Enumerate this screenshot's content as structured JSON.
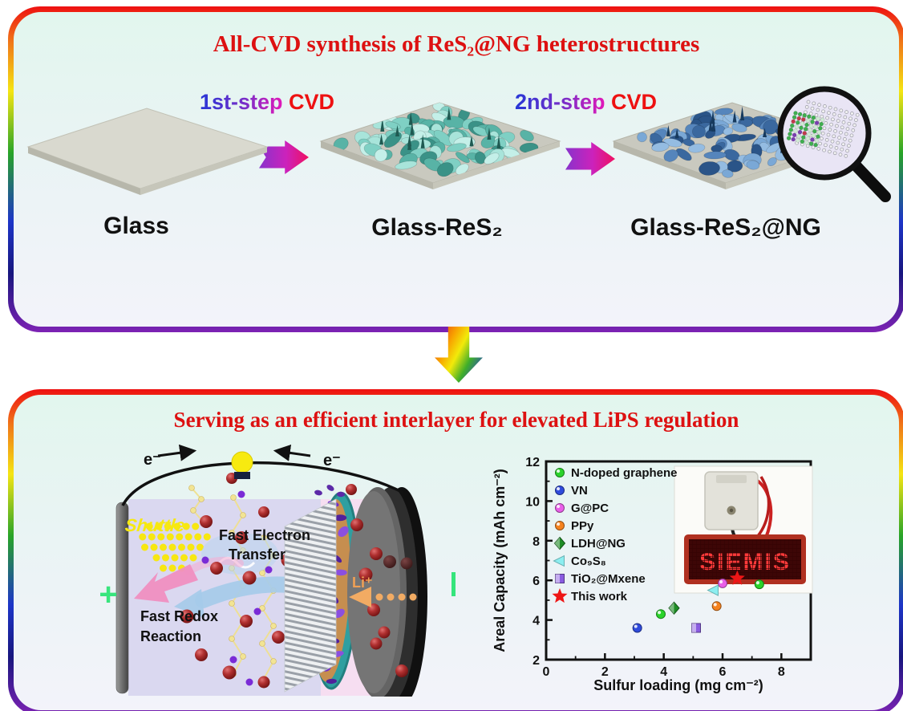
{
  "top": {
    "title": "All-CVD synthesis of ReS₂@NG heterostructures",
    "steps": [
      {
        "gradient": "1st-step",
        "red": "CVD"
      },
      {
        "gradient": "2nd-step",
        "red": "CVD"
      }
    ],
    "labels": [
      "Glass",
      "Glass-ReS₂",
      "Glass-ReS₂@NG"
    ]
  },
  "bottom": {
    "title": "Serving as an efficient interlayer for elevated LiPS regulation",
    "battery": {
      "electron_left": "e⁻",
      "electron_right": "e⁻",
      "plus": "+",
      "shuttle": "Shuttle",
      "fast_electron_line1": "Fast Electron",
      "fast_electron_line2": "Transfer",
      "fast_redox_line1": "Fast Redox",
      "fast_redox_line2": "Reaction",
      "lithium_ion": "Li⁺"
    }
  },
  "chart_data": {
    "type": "scatter",
    "title": "",
    "xlabel": "Sulfur loading (mg cm⁻²)",
    "ylabel": "Areal Capacity (mAh cm⁻²)",
    "xlim": [
      0,
      9
    ],
    "ylim": [
      2,
      12
    ],
    "xticks": [
      0,
      2,
      4,
      6,
      8
    ],
    "yticks": [
      2,
      4,
      6,
      8,
      10,
      12
    ],
    "grid": false,
    "legend_position": "upper-left",
    "series": [
      {
        "name": "N-doped graphene",
        "marker": "circle",
        "color": "#2bd32b",
        "points": [
          [
            3.9,
            4.3
          ],
          [
            7.25,
            5.8
          ]
        ]
      },
      {
        "name": "VN",
        "marker": "circle",
        "color": "#2f4bdc",
        "points": [
          [
            3.1,
            3.6
          ]
        ]
      },
      {
        "name": "G@PC",
        "marker": "circle",
        "color": "#e95fe9",
        "points": [
          [
            6.0,
            5.85
          ]
        ]
      },
      {
        "name": "PPy",
        "marker": "circle",
        "color": "#f5821e",
        "points": [
          [
            5.8,
            4.7
          ]
        ]
      },
      {
        "name": "LDH@NG",
        "marker": "diamond",
        "color": "#1e8c25",
        "points": [
          [
            4.35,
            4.6
          ]
        ]
      },
      {
        "name": "Co₉S₈",
        "marker": "triangle-left",
        "color": "#8ceef0",
        "points": [
          [
            5.7,
            5.5
          ]
        ]
      },
      {
        "name": "TiO₂@Mxene",
        "marker": "square",
        "color": "#8a5ce0",
        "points": [
          [
            5.1,
            3.6
          ]
        ]
      },
      {
        "name": "This work",
        "marker": "star",
        "color": "#ee1616",
        "points": [
          [
            6.5,
            6.1
          ]
        ]
      }
    ],
    "inset_led_text": "SIEMIS"
  },
  "colors": {
    "title_red": "#dd1111",
    "shuttle_yellow": "#f6e911",
    "li_orange": "#f0a055",
    "terminal_green": "#35e57c"
  }
}
